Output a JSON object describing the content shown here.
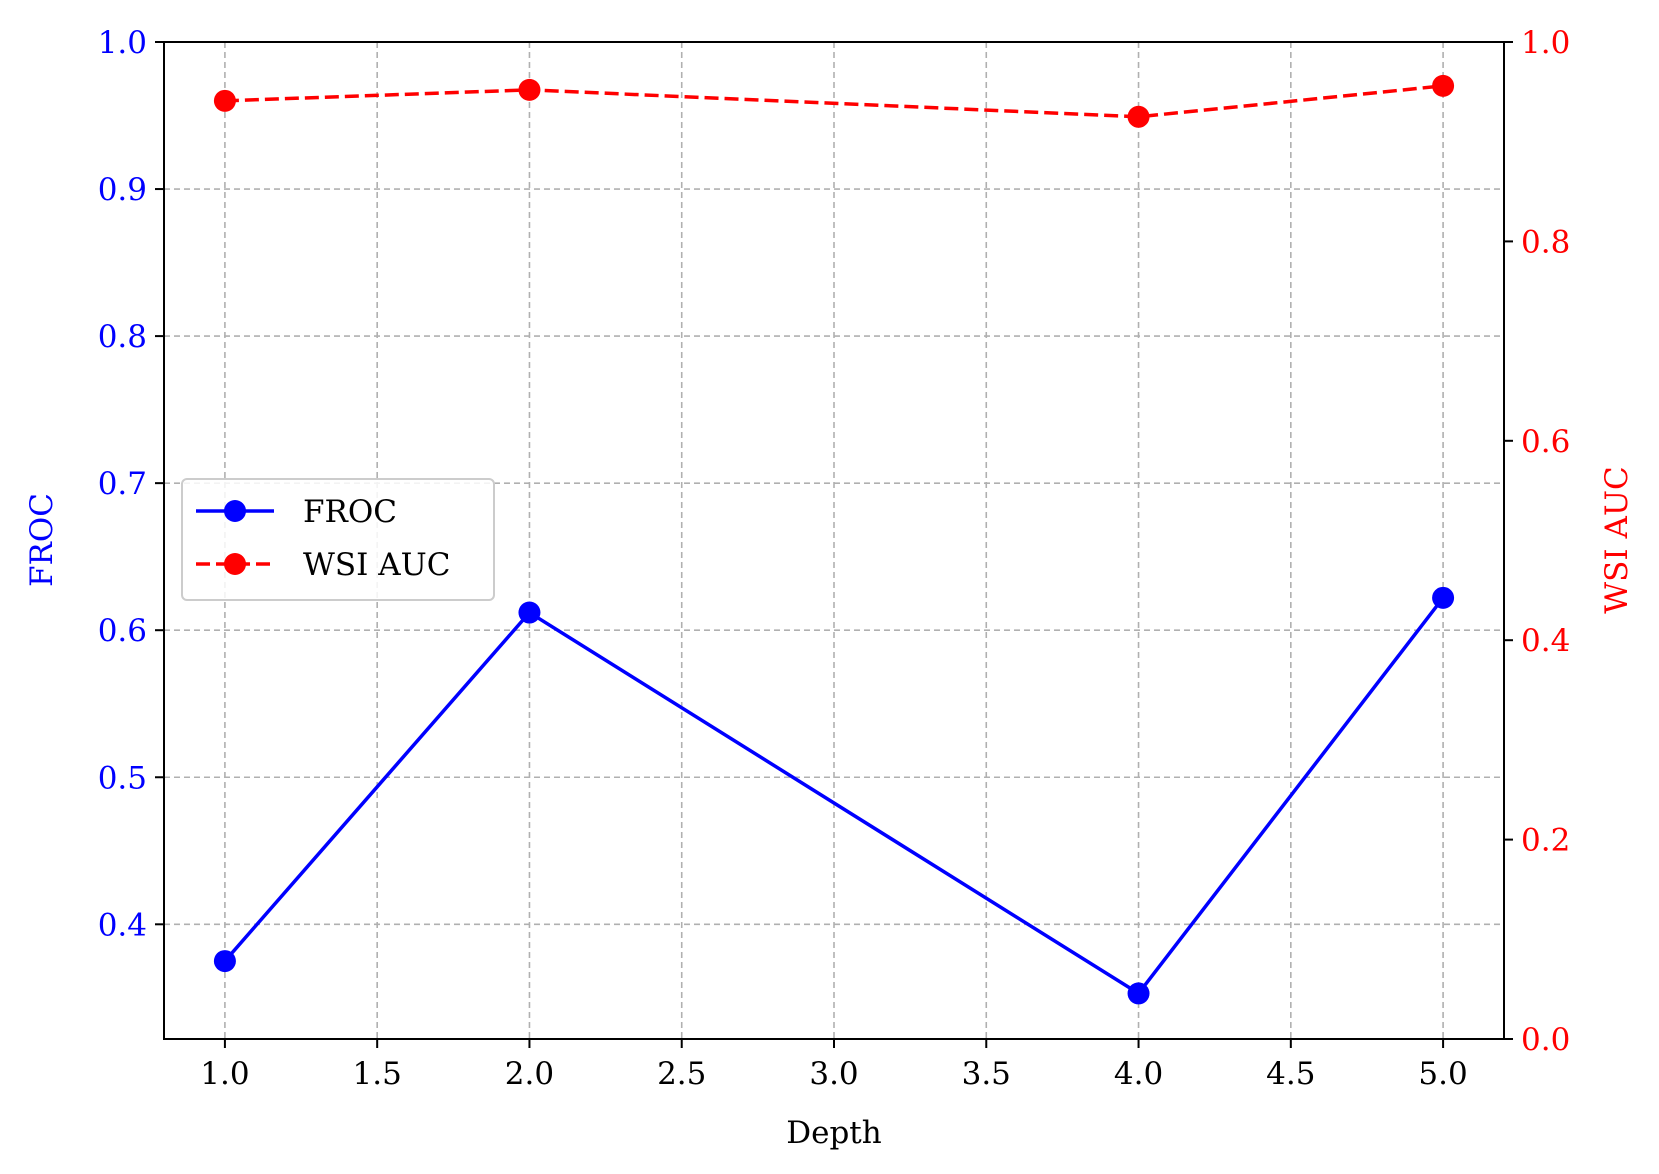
{
  "chart_data": {
    "type": "line",
    "xlabel": "Depth",
    "ylabel_left": "FROC",
    "ylabel_right": "WSI AUC",
    "xlim": [
      0.8,
      5.2
    ],
    "ylim_left": [
      0.322,
      1.0
    ],
    "ylim_right": [
      0.0,
      1.0
    ],
    "x_ticks": [
      "1.0",
      "1.5",
      "2.0",
      "2.5",
      "3.0",
      "3.5",
      "4.0",
      "4.5",
      "5.0"
    ],
    "y_left_ticks": [
      "0.4",
      "0.5",
      "0.6",
      "0.7",
      "0.8",
      "0.9",
      "1.0"
    ],
    "y_right_ticks": [
      "0.0",
      "0.2",
      "0.4",
      "0.6",
      "0.8",
      "1.0"
    ],
    "grid": true,
    "legend_position": "center-left",
    "series": [
      {
        "name": "FROC",
        "axis": "left",
        "color": "#0000ff",
        "line_style": "solid",
        "marker": "circle",
        "x": [
          1.0,
          2.0,
          4.0,
          5.0
        ],
        "values": [
          0.375,
          0.612,
          0.353,
          0.622
        ]
      },
      {
        "name": "WSI AUC",
        "axis": "right",
        "color": "#ff0000",
        "line_style": "dashed",
        "marker": "circle",
        "x": [
          1.0,
          2.0,
          4.0,
          5.0
        ],
        "values": [
          0.941,
          0.952,
          0.925,
          0.956
        ]
      }
    ],
    "colors": {
      "left_axis": "#0000ff",
      "right_axis": "#ff0000",
      "grid": "#b0b0b0"
    }
  }
}
